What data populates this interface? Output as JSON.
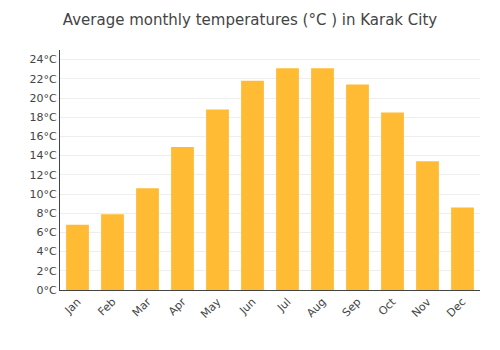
{
  "chart_data": {
    "type": "bar",
    "title": "Average monthly temperatures (°C ) in Karak City",
    "categories": [
      "Jan",
      "Feb",
      "Mar",
      "Apr",
      "May",
      "Jun",
      "Jul",
      "Aug",
      "Sep",
      "Oct",
      "Nov",
      "Dec"
    ],
    "values": [
      6.8,
      7.9,
      10.6,
      14.9,
      18.8,
      21.8,
      23.1,
      23.1,
      21.4,
      18.5,
      13.4,
      8.6
    ],
    "color": "#FFBB33",
    "ylim": [
      0,
      25
    ],
    "yticks": [
      {
        "value": 0,
        "label": "0°C"
      },
      {
        "value": 2,
        "label": "2°C"
      },
      {
        "value": 4,
        "label": "4°C"
      },
      {
        "value": 6,
        "label": "6°C"
      },
      {
        "value": 8,
        "label": "8°C"
      },
      {
        "value": 10,
        "label": "10°C"
      },
      {
        "value": 12,
        "label": "12°C"
      },
      {
        "value": 14,
        "label": "14°C"
      },
      {
        "value": 16,
        "label": "16°C"
      },
      {
        "value": 18,
        "label": "18°C"
      },
      {
        "value": 20,
        "label": "20°C"
      },
      {
        "value": 22,
        "label": "22°C"
      },
      {
        "value": 24,
        "label": "24°C"
      }
    ],
    "grid": true
  }
}
